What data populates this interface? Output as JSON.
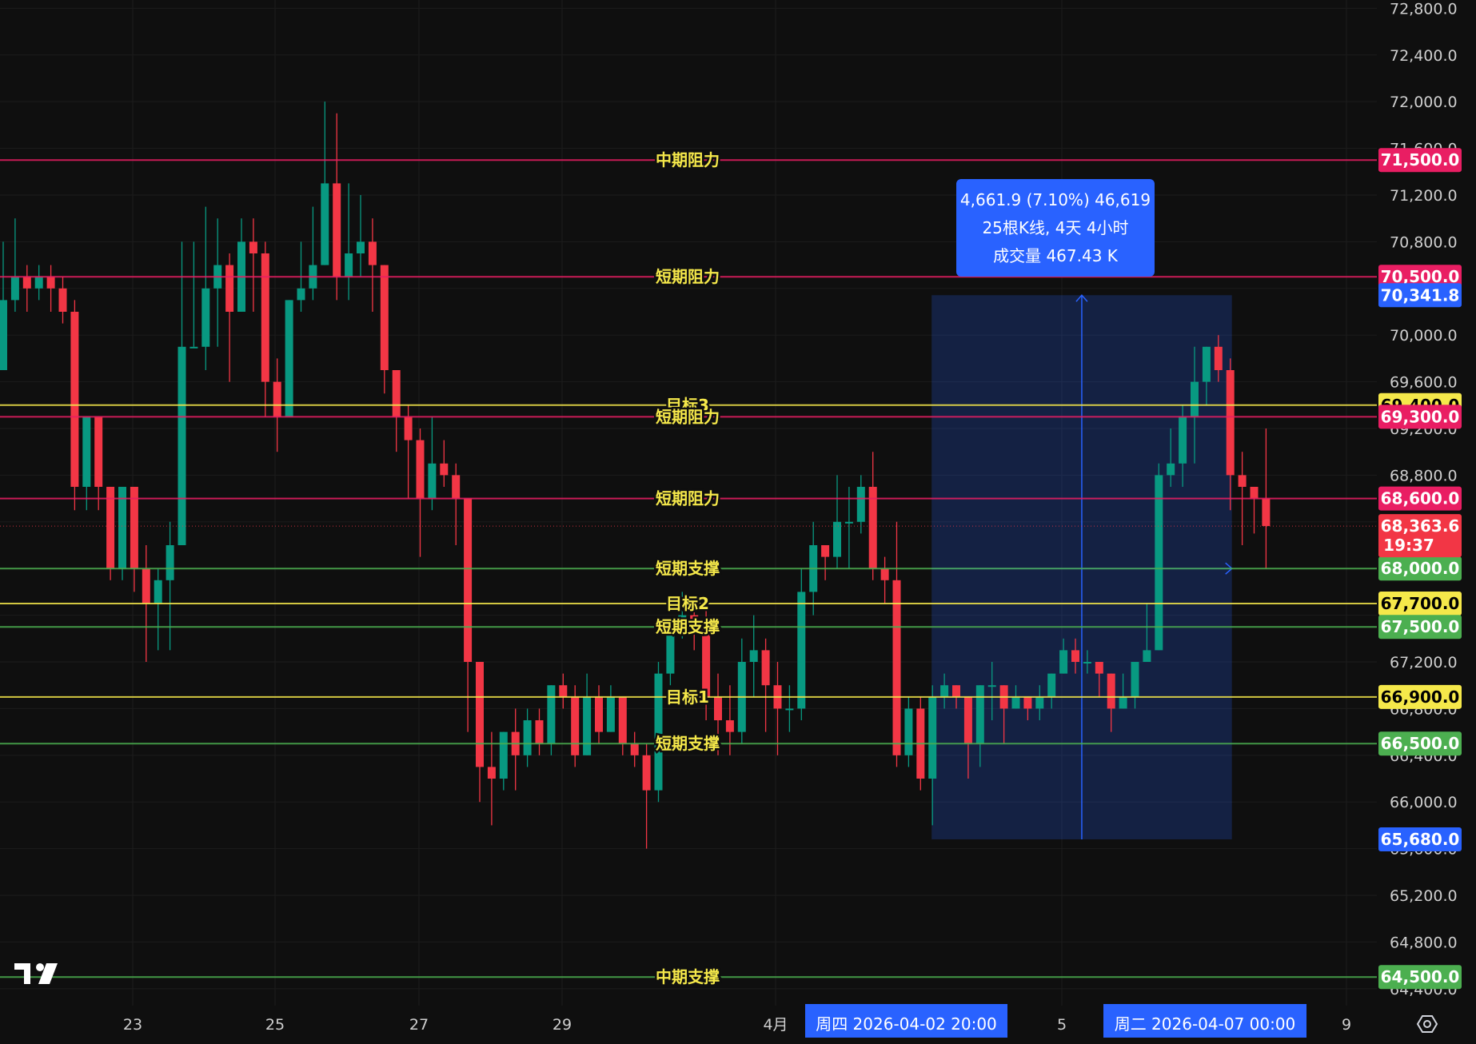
{
  "chart_data": {
    "type": "candlestick",
    "yaxis": {
      "ticks": [
        "72,800.0",
        "72,400.0",
        "72,000.0",
        "71,600.0",
        "71,200.0",
        "70,800.0",
        "70,400.0",
        "70,000.0",
        "69,600.0",
        "69,200.0",
        "68,800.0",
        "68,400.0",
        "68,000.0",
        "67,600.0",
        "67,200.0",
        "66,800.0",
        "66,400.0",
        "66,000.0",
        "65,600.0",
        "65,200.0",
        "64,800.0",
        "64,400.0"
      ],
      "range": [
        64255,
        72830
      ]
    },
    "xaxis": {
      "labels": [
        "23",
        "25",
        "27",
        "29",
        "4月",
        "5",
        "9"
      ],
      "highlighted": [
        "周四 2026-04-02   20:00",
        "周二 2026-04-07   00:00"
      ]
    },
    "candles": [
      [
        69700,
        70300,
        70800,
        69900
      ],
      [
        70300,
        70500,
        71000,
        70200
      ],
      [
        70500,
        70400,
        70600,
        70200
      ],
      [
        70400,
        70500,
        70600,
        70300
      ],
      [
        70500,
        70400,
        70600,
        70200
      ],
      [
        70400,
        70200,
        70500,
        70100
      ],
      [
        70200,
        68700,
        70300,
        68500
      ],
      [
        68700,
        69300,
        69300,
        68500
      ],
      [
        69300,
        68700,
        69300,
        68500
      ],
      [
        68700,
        68000,
        68700,
        67900
      ],
      [
        68000,
        68700,
        68700,
        67900
      ],
      [
        68700,
        68000,
        68700,
        67800
      ],
      [
        68000,
        67700,
        68200,
        67200
      ],
      [
        67700,
        67900,
        68000,
        67300
      ],
      [
        67900,
        68200,
        68400,
        67300
      ],
      [
        68200,
        69900,
        70800,
        68200
      ],
      [
        69900,
        69900,
        70800,
        69900
      ],
      [
        69900,
        70400,
        71100,
        69700
      ],
      [
        70400,
        70600,
        71000,
        69900
      ],
      [
        70600,
        70200,
        70700,
        69600
      ],
      [
        70200,
        70800,
        71000,
        70200
      ],
      [
        70800,
        70700,
        71000,
        70200
      ],
      [
        70700,
        69600,
        70800,
        69300
      ],
      [
        69600,
        69300,
        69800,
        69000
      ],
      [
        69300,
        70300,
        70300,
        69300
      ],
      [
        70300,
        70400,
        70800,
        70200
      ],
      [
        70400,
        70600,
        71100,
        70300
      ],
      [
        70600,
        71300,
        72000,
        70600
      ],
      [
        71300,
        70500,
        71900,
        70300
      ],
      [
        70500,
        70700,
        71300,
        70300
      ],
      [
        70700,
        70800,
        71200,
        70500
      ],
      [
        70800,
        70600,
        71000,
        70200
      ],
      [
        70600,
        69700,
        70600,
        69500
      ],
      [
        69700,
        69300,
        69700,
        69000
      ],
      [
        69300,
        69100,
        69400,
        68600
      ],
      [
        69100,
        68600,
        69200,
        68100
      ],
      [
        68600,
        68900,
        69300,
        68500
      ],
      [
        68900,
        68800,
        69100,
        68700
      ],
      [
        68800,
        68600,
        68900,
        68200
      ],
      [
        68600,
        67200,
        68600,
        66600
      ],
      [
        67200,
        66300,
        67200,
        66000
      ],
      [
        66300,
        66200,
        66600,
        65800
      ],
      [
        66200,
        66600,
        66600,
        66100
      ],
      [
        66600,
        66400,
        66800,
        66100
      ],
      [
        66400,
        66700,
        66800,
        66300
      ],
      [
        66700,
        66500,
        66800,
        66400
      ],
      [
        66500,
        67000,
        67000,
        66400
      ],
      [
        67000,
        66900,
        67100,
        66800
      ],
      [
        66900,
        66400,
        67000,
        66300
      ],
      [
        66400,
        66900,
        67100,
        66400
      ],
      [
        66900,
        66600,
        67000,
        66500
      ],
      [
        66600,
        66900,
        67000,
        66600
      ],
      [
        66900,
        66500,
        66900,
        66400
      ],
      [
        66500,
        66400,
        66600,
        66300
      ],
      [
        66400,
        66100,
        66500,
        65600
      ],
      [
        66100,
        67100,
        67200,
        66000
      ],
      [
        67100,
        67500,
        67500,
        67000
      ],
      [
        67500,
        67600,
        67800,
        67400
      ],
      [
        67600,
        67500,
        67700,
        67300
      ],
      [
        67500,
        66900,
        67700,
        66700
      ],
      [
        66900,
        66700,
        67100,
        66400
      ],
      [
        66700,
        66600,
        67000,
        66400
      ],
      [
        66600,
        67200,
        67400,
        66500
      ],
      [
        67200,
        67300,
        67600,
        66900
      ],
      [
        67300,
        67000,
        67400,
        66600
      ],
      [
        67000,
        66800,
        67200,
        66400
      ],
      [
        66800,
        66800,
        67000,
        66600
      ],
      [
        66800,
        67800,
        68000,
        66700
      ],
      [
        67800,
        68200,
        68400,
        67600
      ],
      [
        68200,
        68100,
        68200,
        67900
      ],
      [
        68100,
        68400,
        68800,
        68000
      ],
      [
        68400,
        68400,
        68700,
        68000
      ],
      [
        68400,
        68700,
        68800,
        68300
      ],
      [
        68700,
        68000,
        69000,
        67900
      ],
      [
        68000,
        67900,
        68100,
        67700
      ],
      [
        67900,
        66400,
        68400,
        66300
      ],
      [
        66400,
        66800,
        66900,
        66300
      ],
      [
        66800,
        66200,
        66900,
        66100
      ],
      [
        66200,
        66900,
        67000,
        65800
      ],
      [
        66900,
        67000,
        67100,
        66800
      ],
      [
        67000,
        66900,
        67000,
        66800
      ],
      [
        66900,
        66500,
        66900,
        66200
      ],
      [
        66500,
        67000,
        67000,
        66300
      ],
      [
        67000,
        67000,
        67200,
        66700
      ],
      [
        67000,
        66800,
        67000,
        66500
      ],
      [
        66800,
        66900,
        67000,
        66800
      ],
      [
        66900,
        66800,
        66900,
        66700
      ],
      [
        66800,
        66900,
        67000,
        66700
      ],
      [
        66900,
        67100,
        67100,
        66800
      ],
      [
        67100,
        67300,
        67400,
        67100
      ],
      [
        67300,
        67200,
        67400,
        67100
      ],
      [
        67200,
        67200,
        67300,
        67100
      ],
      [
        67200,
        67100,
        67200,
        66900
      ],
      [
        67100,
        66800,
        67100,
        66600
      ],
      [
        66800,
        66900,
        67100,
        66800
      ],
      [
        66900,
        67200,
        67200,
        66800
      ],
      [
        67200,
        67300,
        67700,
        67200
      ],
      [
        67300,
        68800,
        68900,
        67300
      ],
      [
        68800,
        68900,
        69200,
        68700
      ],
      [
        68900,
        69300,
        69400,
        68700
      ],
      [
        69300,
        69600,
        69900,
        68900
      ],
      [
        69600,
        69900,
        69900,
        69400
      ],
      [
        69900,
        69700,
        70000,
        69600
      ],
      [
        69700,
        68800,
        69800,
        68500
      ],
      [
        68800,
        68700,
        69000,
        68200
      ],
      [
        68700,
        68600,
        68700,
        68300
      ],
      [
        68600,
        68364,
        69200,
        68000
      ]
    ],
    "levels": [
      {
        "price": 71500,
        "label": "中期阻力",
        "tag": "71,500.0",
        "kind": "res"
      },
      {
        "price": 70500,
        "label": "短期阻力",
        "tag": "70,500.0",
        "kind": "res"
      },
      {
        "price": 69400,
        "label": "目标3",
        "tag": "69,400.0",
        "kind": "tgt"
      },
      {
        "price": 69300,
        "label": "短期阻力",
        "tag": "69,300.0",
        "kind": "res"
      },
      {
        "price": 68600,
        "label": "短期阻力",
        "tag": "68,600.0",
        "kind": "res"
      },
      {
        "price": 68000,
        "label": "短期支撑",
        "tag": "68,000.0",
        "kind": "sup"
      },
      {
        "price": 67700,
        "label": "目标2",
        "tag": "67,700.0",
        "kind": "tgt"
      },
      {
        "price": 67500,
        "label": "短期支撑",
        "tag": "67,500.0",
        "kind": "sup"
      },
      {
        "price": 66900,
        "label": "目标1",
        "tag": "66,900.0",
        "kind": "tgt"
      },
      {
        "price": 66500,
        "label": "短期支撑",
        "tag": "66,500.0",
        "kind": "sup"
      },
      {
        "price": 64500,
        "label": "中期支撑",
        "tag": "64,500.0",
        "kind": "sup"
      }
    ],
    "current_price": {
      "tag": "68,363.6",
      "countdown": "19:37",
      "price": 68363.6
    },
    "measure": {
      "start_index": 78,
      "end_index": 103,
      "low": 65680,
      "high": 70341.8,
      "low_tag": "65,680.0",
      "high_tag": "70,341.8",
      "lines": [
        "4,661.9 (7.10%) 46,619",
        "25根K线, 4天 4小时",
        "成交量 467.43 K"
      ]
    },
    "colors": {
      "up": "#089981",
      "down": "#f23645",
      "resistance": "#e91e63",
      "support": "#4caf50",
      "target": "#f5e84a",
      "measure": "#2962ff",
      "label_text": "#f5e84a"
    }
  },
  "logo": "TV",
  "settings_icon": "gear-icon"
}
